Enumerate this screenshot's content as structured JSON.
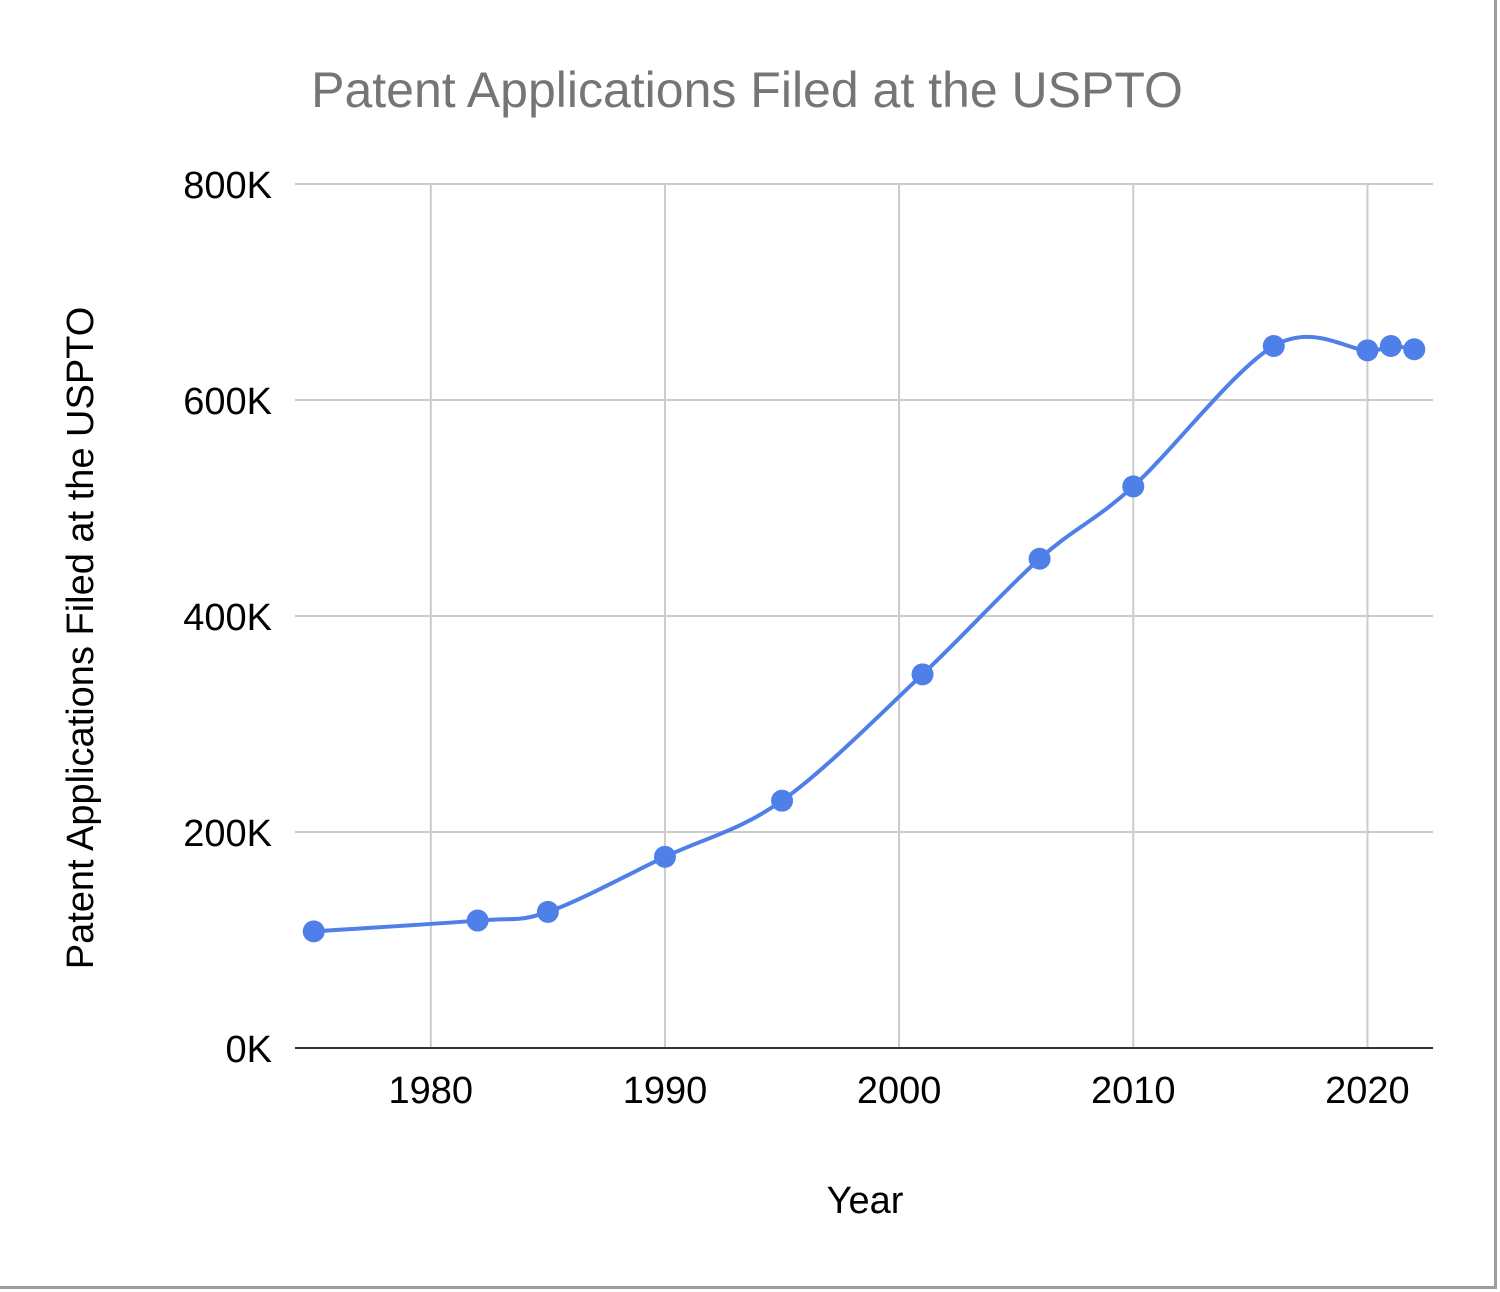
{
  "chart_data": {
    "type": "line",
    "title": "Patent Applications Filed at the USPTO",
    "xlabel": "Year",
    "ylabel": "Patent Applications Filed at the USPTO",
    "x": [
      1975,
      1982,
      1985,
      1990,
      1995,
      2001,
      2006,
      2010,
      2016,
      2020,
      2021,
      2022
    ],
    "series": [
      {
        "values": [
          108000,
          118000,
          126000,
          177000,
          229000,
          346000,
          453000,
          520000,
          650000,
          646000,
          650000,
          647000
        ],
        "color": "#4f7fe8"
      }
    ],
    "xticks": [
      "1980",
      "1990",
      "2000",
      "2010",
      "2020"
    ],
    "yticks": [
      "0K",
      "200K",
      "400K",
      "600K",
      "800K"
    ],
    "xlim": [
      1974.2,
      2022.8
    ],
    "ylim": [
      0,
      800000
    ],
    "grid": true,
    "smooth": true,
    "markers": true,
    "legend": "none"
  }
}
